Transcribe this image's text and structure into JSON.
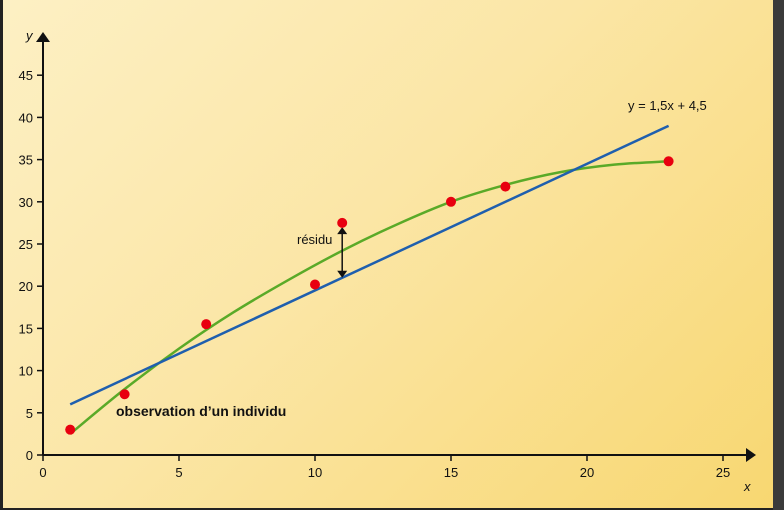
{
  "chart_data": {
    "type": "scatter",
    "xlabel": "x",
    "ylabel": "y",
    "xlim": [
      0,
      25
    ],
    "ylim": [
      0,
      45
    ],
    "xticks": [
      0,
      5,
      10,
      15,
      20,
      25
    ],
    "yticks": [
      0,
      5,
      10,
      15,
      20,
      25,
      30,
      35,
      40,
      45
    ],
    "points": [
      {
        "x": 1,
        "y": 3
      },
      {
        "x": 3,
        "y": 7.2
      },
      {
        "x": 6,
        "y": 15.5
      },
      {
        "x": 10,
        "y": 20.2
      },
      {
        "x": 11,
        "y": 27.5
      },
      {
        "x": 15,
        "y": 30
      },
      {
        "x": 17,
        "y": 31.8
      },
      {
        "x": 23,
        "y": 34.8
      }
    ],
    "regression_line": {
      "label": "y = 1,5x + 4,5",
      "slope": 1.5,
      "intercept": 4.5,
      "x_range": [
        1,
        23
      ]
    },
    "fitted_curve": [
      [
        1,
        2.5
      ],
      [
        3,
        7.8
      ],
      [
        5,
        12.6
      ],
      [
        7,
        16.9
      ],
      [
        9,
        20.7
      ],
      [
        11,
        24.2
      ],
      [
        13,
        27.3
      ],
      [
        15,
        30
      ],
      [
        17,
        32
      ],
      [
        19,
        33.5
      ],
      [
        21,
        34.4
      ],
      [
        23,
        34.8
      ]
    ],
    "residual": {
      "label": "résidu",
      "x": 11,
      "from": 27,
      "to": 21
    },
    "annotation": "observation d’un individu",
    "colors": {
      "points": "#e8000f",
      "line": "#1f5fae",
      "curve": "#5aaa28",
      "axis": "#111111"
    }
  }
}
